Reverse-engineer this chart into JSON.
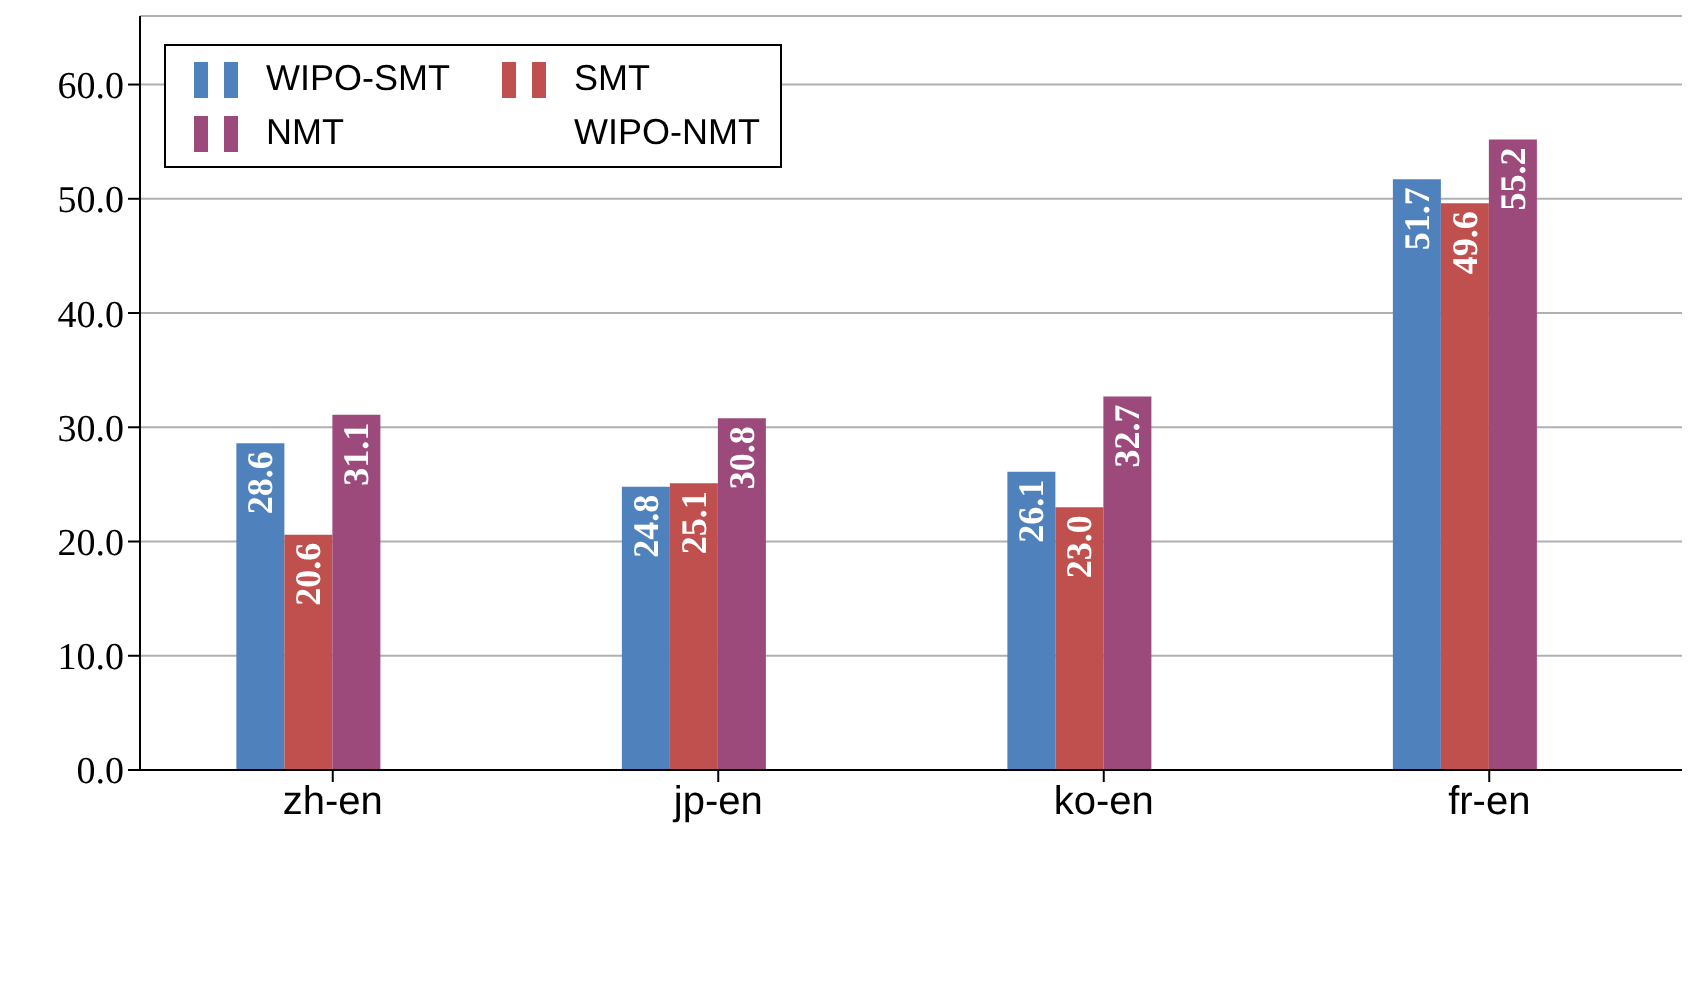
{
  "chart_data": {
    "type": "bar",
    "categories": [
      "zh-en",
      "jp-en",
      "ko-en",
      "fr-en"
    ],
    "series": [
      {
        "name": "WIPO-SMT",
        "color": "#4f81bd",
        "values": [
          28.6,
          24.8,
          26.1,
          51.7
        ],
        "value_labels": [
          "28.6",
          "24.8",
          "26.1",
          "51.7"
        ]
      },
      {
        "name": "SMT",
        "color": "#c0504d",
        "values": [
          20.6,
          25.1,
          23.0,
          49.6
        ],
        "value_labels": [
          "20.6",
          "25.1",
          "23.0",
          "49.6"
        ]
      },
      {
        "name": "NMT",
        "color": "#9b4a7b",
        "values": [
          31.1,
          30.8,
          32.7,
          55.2
        ],
        "value_labels": [
          "31.1",
          "30.8",
          "32.7",
          "55.2"
        ]
      },
      {
        "name": "WIPO-NMT",
        "values": [
          null,
          null,
          null,
          null
        ]
      }
    ],
    "ylim": [
      0,
      66
    ],
    "yticks": [
      {
        "value": 0,
        "label": "0.0"
      },
      {
        "value": 10,
        "label": "10.0"
      },
      {
        "value": 20,
        "label": "20.0"
      },
      {
        "value": 30,
        "label": "30.0"
      },
      {
        "value": 40,
        "label": "40.0"
      },
      {
        "value": 50,
        "label": "50.0"
      },
      {
        "value": 60,
        "label": "60.0"
      }
    ],
    "grid": "y",
    "legend": "top left"
  }
}
